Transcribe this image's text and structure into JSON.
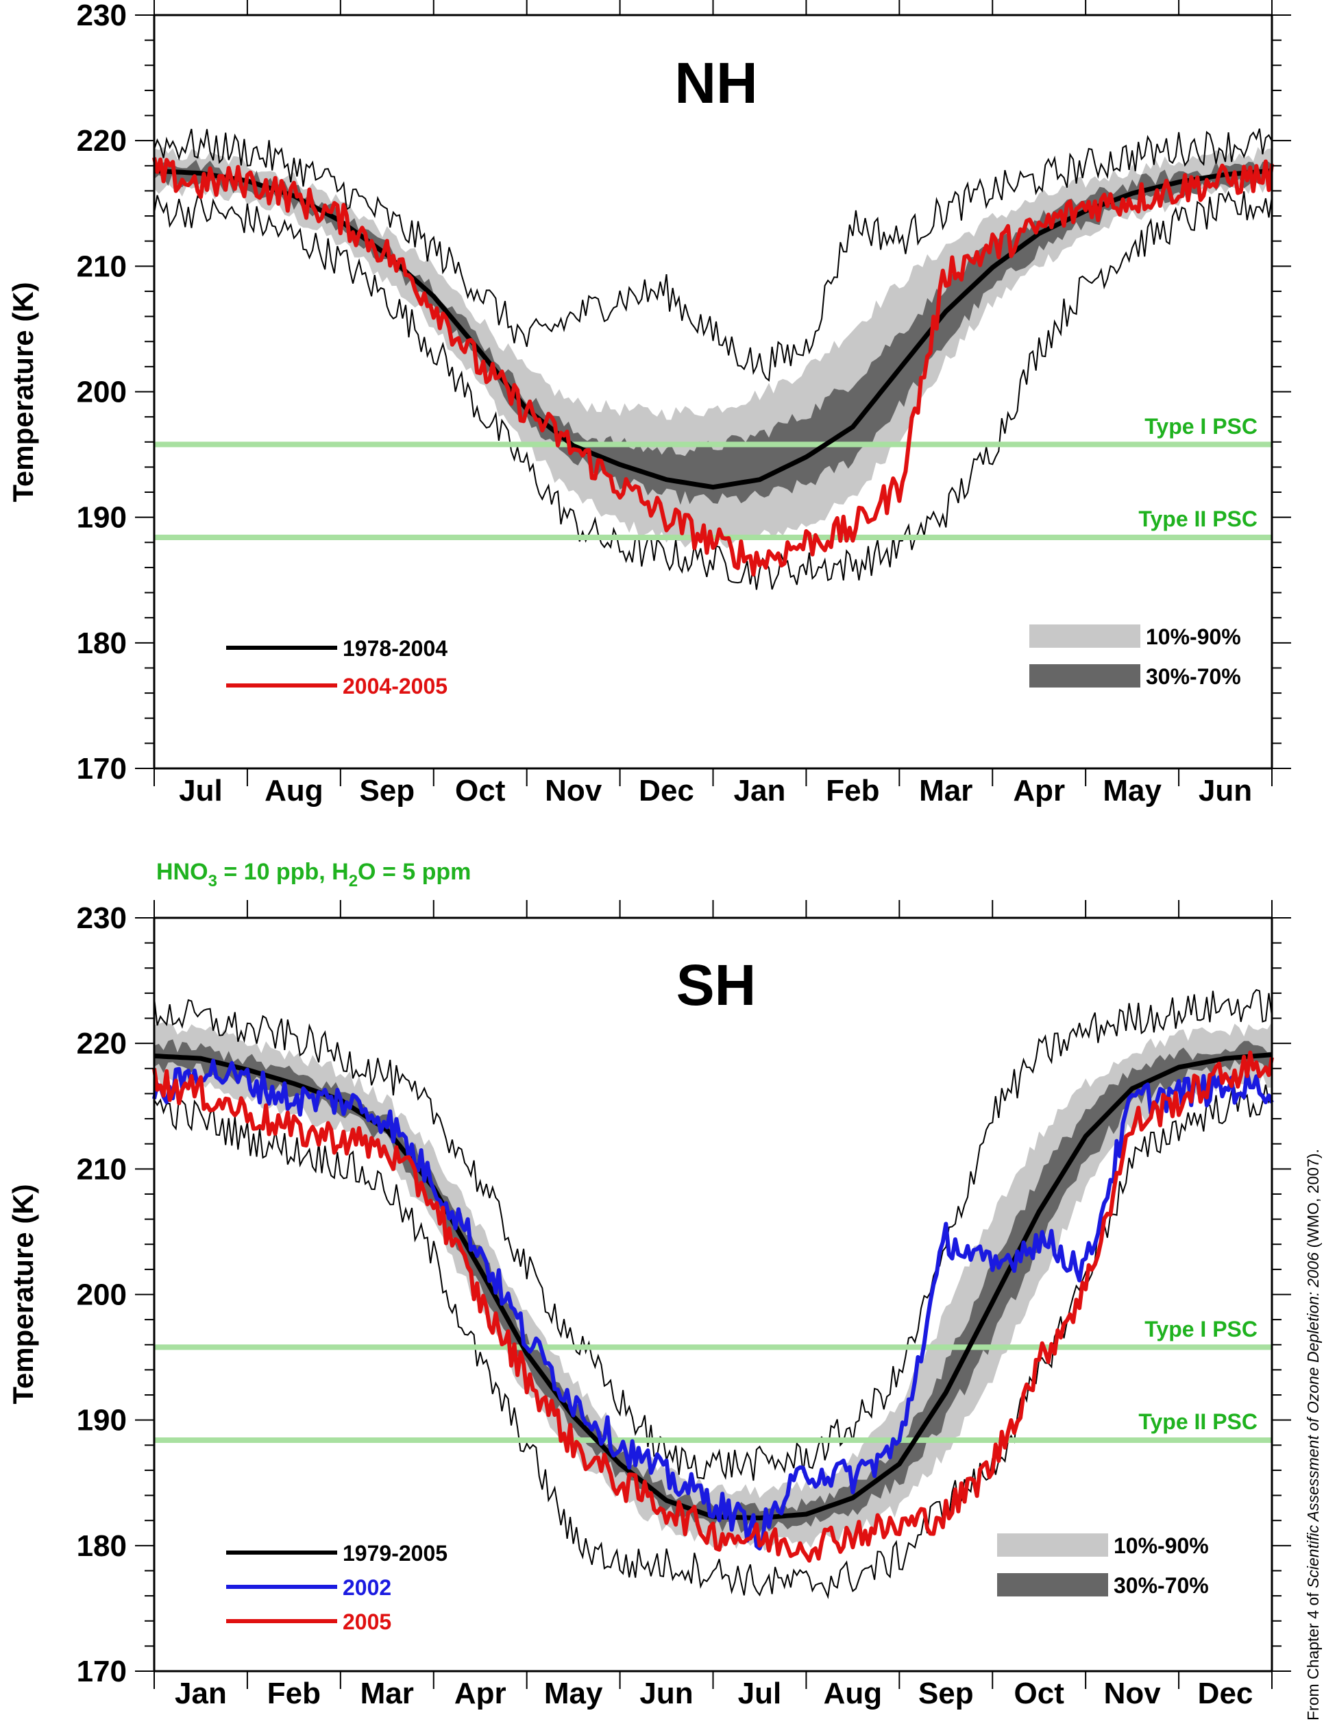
{
  "colors": {
    "psc_line": "#a8e0a0",
    "psc_text": "#1fb21f",
    "band_outer": "#c8c8c8",
    "band_inner": "#666666",
    "climatology": "#000000",
    "red": "#e01010",
    "blue": "#1a1ae0",
    "extreme": "#000000"
  },
  "condition_label": {
    "pre": "HNO",
    "sub1": "3",
    "mid": " = 10 ppb, H",
    "sub2": "2",
    "post": "O = 5 ppm"
  },
  "credit": {
    "prefix": "From Chapter 4 of ",
    "italic": "Scientific Assessment of Ozone Depletion: 2006",
    "suffix": " (WMO, 2007)."
  },
  "chart_data": [
    {
      "type": "line",
      "title": "NH",
      "ylabel": "Temperature (K)",
      "ylim": [
        170,
        230
      ],
      "yticks": [
        170,
        180,
        190,
        200,
        210,
        220,
        230
      ],
      "months": [
        "Jul",
        "Aug",
        "Sep",
        "Oct",
        "Nov",
        "Dec",
        "Jan",
        "Feb",
        "Mar",
        "Apr",
        "May",
        "Jun"
      ],
      "x_unit": "month index (0 = start of Jul)",
      "psc_lines": [
        {
          "label": "Type I PSC",
          "value": 195.8
        },
        {
          "label": "Type II PSC",
          "value": 188.4
        }
      ],
      "bands": [
        {
          "label": "10%-90%",
          "x": [
            0.0,
            0.5,
            1.0,
            1.5,
            2.0,
            2.5,
            3.0,
            3.5,
            4.0,
            4.5,
            5.0,
            5.5,
            6.0,
            6.5,
            7.0,
            7.5,
            8.0,
            8.5,
            9.0,
            9.5,
            10.0,
            10.5,
            11.0,
            11.5,
            12.0
          ],
          "lower": [
            216.0,
            215.9,
            215.3,
            213.9,
            211.8,
            208.9,
            205.4,
            200.6,
            195.6,
            191.8,
            189.5,
            188.3,
            188.0,
            188.4,
            189.4,
            191.4,
            196.4,
            202.4,
            207.0,
            210.2,
            212.4,
            214.0,
            215.2,
            216.0,
            216.5
          ],
          "upper": [
            219.0,
            218.8,
            218.2,
            217.0,
            215.2,
            212.6,
            209.8,
            205.8,
            201.6,
            199.1,
            198.6,
            198.3,
            198.6,
            199.8,
            201.8,
            205.0,
            208.6,
            211.6,
            213.8,
            215.4,
            216.7,
            217.7,
            218.4,
            218.8,
            219.0
          ]
        },
        {
          "label": "30%-70%",
          "x": [
            0.0,
            0.5,
            1.0,
            1.5,
            2.0,
            2.5,
            3.0,
            3.5,
            4.0,
            4.5,
            5.0,
            5.5,
            6.0,
            6.5,
            7.0,
            7.5,
            8.0,
            8.5,
            9.0,
            9.5,
            10.0,
            10.5,
            11.0,
            11.5,
            12.0
          ],
          "lower": [
            217.0,
            216.8,
            216.2,
            215.0,
            213.0,
            210.2,
            206.8,
            202.2,
            197.6,
            194.6,
            192.8,
            191.7,
            191.3,
            191.6,
            192.6,
            194.6,
            198.8,
            204.0,
            208.2,
            211.3,
            213.4,
            214.9,
            215.9,
            216.6,
            217.0
          ],
          "upper": [
            218.2,
            218.0,
            217.4,
            216.2,
            214.2,
            211.6,
            208.4,
            204.2,
            199.6,
            196.8,
            195.8,
            195.3,
            195.6,
            196.6,
            198.2,
            200.8,
            204.6,
            208.6,
            211.6,
            213.8,
            215.4,
            216.6,
            217.4,
            217.9,
            218.2
          ]
        }
      ],
      "extremes": {
        "x": [
          0.0,
          0.5,
          1.0,
          1.5,
          2.0,
          2.5,
          3.0,
          3.5,
          4.0,
          4.5,
          5.0,
          5.5,
          6.0,
          6.5,
          7.0,
          7.5,
          8.0,
          8.5,
          9.0,
          9.5,
          10.0,
          10.5,
          11.0,
          11.5,
          12.0
        ],
        "min": [
          214.5,
          214.4,
          213.8,
          212.4,
          210.5,
          207.5,
          203.5,
          198.5,
          194.0,
          189.5,
          187.5,
          187.0,
          186.5,
          185.5,
          186.0,
          186.2,
          187.5,
          190.5,
          195.5,
          203.5,
          208.5,
          211.5,
          213.5,
          214.5,
          215.0
        ],
        "max": [
          219.8,
          219.6,
          219.2,
          218.0,
          216.2,
          213.8,
          211.4,
          208.0,
          204.0,
          206.0,
          207.5,
          208.0,
          204.5,
          202.0,
          203.5,
          213.5,
          212.0,
          214.5,
          216.0,
          217.0,
          218.0,
          218.8,
          219.4,
          219.6,
          219.8
        ]
      },
      "series": [
        {
          "name": "1978-2004",
          "color": "#000000",
          "x": [
            0.0,
            0.5,
            1.0,
            1.5,
            2.0,
            2.5,
            3.0,
            3.5,
            4.0,
            4.5,
            5.0,
            5.5,
            6.0,
            6.5,
            7.0,
            7.5,
            8.0,
            8.5,
            9.0,
            9.5,
            10.0,
            10.5,
            11.0,
            11.5,
            12.0
          ],
          "values": [
            217.6,
            217.4,
            216.8,
            215.6,
            213.6,
            210.9,
            207.6,
            203.2,
            198.6,
            195.7,
            194.2,
            193.0,
            192.4,
            193.0,
            194.8,
            197.2,
            201.8,
            206.4,
            209.9,
            212.6,
            214.4,
            215.8,
            216.7,
            217.3,
            217.6
          ]
        },
        {
          "name": "2004-2005",
          "color": "#e01010",
          "x": [
            0.0,
            0.5,
            1.0,
            1.5,
            2.0,
            2.5,
            3.0,
            3.5,
            4.0,
            4.5,
            5.0,
            5.5,
            6.0,
            6.5,
            7.0,
            7.5,
            8.0,
            8.5,
            9.0,
            9.5,
            10.0,
            10.5,
            11.0,
            11.5,
            12.0
          ],
          "values": [
            217.5,
            216.5,
            216.8,
            215.5,
            213.8,
            211.0,
            207.0,
            202.0,
            198.5,
            195.5,
            192.5,
            190.0,
            188.0,
            186.5,
            188.0,
            189.0,
            192.5,
            209.5,
            211.5,
            213.0,
            214.8,
            215.3,
            216.2,
            216.8,
            217.2
          ]
        }
      ],
      "legend": {
        "lines": [
          {
            "label": "1978-2004",
            "color": "#000000"
          },
          {
            "label": "2004-2005",
            "color": "#e01010"
          }
        ],
        "bands": [
          {
            "label": "10%-90%",
            "color": "#c8c8c8"
          },
          {
            "label": "30%-70%",
            "color": "#666666"
          }
        ]
      }
    },
    {
      "type": "line",
      "title": "SH",
      "ylabel": "Temperature (K)",
      "ylim": [
        170,
        230
      ],
      "yticks": [
        170,
        180,
        190,
        200,
        210,
        220,
        230
      ],
      "months": [
        "Jan",
        "Feb",
        "Mar",
        "Apr",
        "May",
        "Jun",
        "Jul",
        "Aug",
        "Sep",
        "Oct",
        "Nov",
        "Dec"
      ],
      "x_unit": "month index (0 = start of Jan)",
      "psc_lines": [
        {
          "label": "Type I PSC",
          "value": 195.8
        },
        {
          "label": "Type II PSC",
          "value": 188.4
        }
      ],
      "bands": [
        {
          "label": "10%-90%",
          "x": [
            0.0,
            0.5,
            1.0,
            1.5,
            2.0,
            2.5,
            3.0,
            3.5,
            4.0,
            4.5,
            5.0,
            5.5,
            6.0,
            6.5,
            7.0,
            7.5,
            8.0,
            8.5,
            9.0,
            9.5,
            10.0,
            10.5,
            11.0,
            11.5,
            12.0
          ],
          "lower": [
            216.8,
            216.5,
            215.6,
            214.5,
            213.3,
            210.8,
            205.6,
            198.9,
            192.2,
            187.5,
            184.0,
            181.4,
            180.3,
            180.1,
            180.2,
            181.1,
            183.0,
            187.4,
            193.2,
            201.0,
            208.6,
            213.5,
            215.9,
            216.8,
            217.0
          ],
          "upper": [
            221.3,
            221.0,
            220.1,
            219.0,
            217.8,
            215.4,
            211.4,
            205.2,
            198.4,
            193.0,
            188.8,
            185.9,
            184.4,
            184.3,
            184.6,
            186.8,
            191.0,
            198.6,
            206.4,
            212.5,
            216.8,
            219.4,
            220.6,
            221.0,
            221.3
          ]
        },
        {
          "label": "30%-70%",
          "x": [
            0.0,
            0.5,
            1.0,
            1.5,
            2.0,
            2.5,
            3.0,
            3.5,
            4.0,
            4.5,
            5.0,
            5.5,
            6.0,
            6.5,
            7.0,
            7.5,
            8.0,
            8.5,
            9.0,
            9.5,
            10.0,
            10.5,
            11.0,
            11.5,
            12.0
          ],
          "lower": [
            218.2,
            217.9,
            217.0,
            215.9,
            214.6,
            212.2,
            207.2,
            200.6,
            194.0,
            189.2,
            185.6,
            182.8,
            181.6,
            181.5,
            181.8,
            182.8,
            185.0,
            190.0,
            196.4,
            203.8,
            210.6,
            215.2,
            217.2,
            218.1,
            218.4
          ],
          "upper": [
            219.8,
            219.6,
            218.7,
            217.6,
            216.3,
            214.0,
            209.8,
            203.4,
            196.6,
            191.4,
            187.4,
            184.4,
            183.0,
            182.9,
            183.2,
            184.8,
            188.0,
            194.4,
            202.4,
            209.4,
            214.6,
            217.7,
            219.1,
            219.6,
            219.8
          ]
        }
      ],
      "extremes": {
        "x": [
          0.0,
          0.5,
          1.0,
          1.5,
          2.0,
          2.5,
          3.0,
          3.5,
          4.0,
          4.5,
          5.0,
          5.5,
          6.0,
          6.5,
          7.0,
          7.5,
          8.0,
          8.5,
          9.0,
          9.5,
          10.0,
          10.5,
          11.0,
          11.5,
          12.0
        ],
        "min": [
          215.0,
          214.0,
          212.5,
          211.5,
          210.5,
          208.5,
          203.0,
          194.5,
          188.0,
          180.5,
          178.5,
          178.5,
          178.0,
          177.0,
          177.0,
          177.5,
          179.0,
          183.5,
          186.0,
          193.5,
          201.5,
          210.5,
          213.5,
          215.0,
          215.5
        ],
        "max": [
          222.5,
          222.0,
          221.0,
          220.5,
          219.0,
          217.5,
          214.5,
          209.0,
          202.0,
          196.5,
          191.5,
          187.0,
          186.5,
          186.5,
          187.0,
          189.5,
          193.5,
          203.5,
          214.5,
          219.0,
          221.0,
          222.0,
          222.5,
          223.0,
          223.0
        ]
      },
      "series": [
        {
          "name": "1979-2005",
          "color": "#000000",
          "x": [
            0.0,
            0.5,
            1.0,
            1.5,
            2.0,
            2.5,
            3.0,
            3.5,
            4.0,
            4.5,
            5.0,
            5.5,
            6.0,
            6.5,
            7.0,
            7.5,
            8.0,
            8.5,
            9.0,
            9.5,
            10.0,
            10.5,
            11.0,
            11.5,
            12.0
          ],
          "values": [
            219.0,
            218.8,
            217.9,
            216.8,
            215.5,
            213.1,
            208.5,
            202.0,
            195.3,
            190.3,
            186.5,
            183.6,
            182.3,
            182.2,
            182.5,
            183.8,
            186.5,
            192.2,
            199.4,
            206.6,
            212.6,
            216.4,
            218.1,
            218.8,
            219.1
          ]
        },
        {
          "name": "2002",
          "color": "#1a1ae0",
          "x": [
            0.0,
            0.5,
            1.0,
            1.5,
            2.0,
            2.5,
            3.0,
            3.5,
            4.0,
            4.5,
            5.0,
            5.5,
            6.0,
            6.5,
            7.0,
            7.5,
            8.0,
            8.5,
            9.0,
            9.5,
            10.0,
            10.5,
            11.0,
            11.5,
            12.0
          ],
          "values": [
            215.5,
            218.0,
            217.0,
            215.5,
            215.5,
            214.0,
            209.0,
            203.5,
            196.5,
            191.5,
            188.0,
            185.5,
            183.5,
            181.0,
            186.0,
            185.5,
            188.0,
            204.5,
            202.0,
            204.5,
            202.0,
            215.5,
            216.0,
            216.5,
            216.5
          ]
        },
        {
          "name": "2005",
          "color": "#e01010",
          "x": [
            0.0,
            0.5,
            1.0,
            1.5,
            2.0,
            2.5,
            3.0,
            3.5,
            4.0,
            4.5,
            5.0,
            5.5,
            6.0,
            6.5,
            7.0,
            7.5,
            8.0,
            8.5,
            9.0,
            9.5,
            10.0,
            10.5,
            11.0,
            11.5,
            12.0
          ],
          "values": [
            217.0,
            216.0,
            214.5,
            213.0,
            212.5,
            211.5,
            207.5,
            199.5,
            193.5,
            188.0,
            185.0,
            183.0,
            181.0,
            180.5,
            180.0,
            181.0,
            181.5,
            182.5,
            186.5,
            194.5,
            200.5,
            213.5,
            215.5,
            217.5,
            218.5
          ]
        }
      ],
      "legend": {
        "lines": [
          {
            "label": "1979-2005",
            "color": "#000000"
          },
          {
            "label": "2002",
            "color": "#1a1ae0"
          },
          {
            "label": "2005",
            "color": "#e01010"
          }
        ],
        "bands": [
          {
            "label": "10%-90%",
            "color": "#c8c8c8"
          },
          {
            "label": "30%-70%",
            "color": "#666666"
          }
        ]
      }
    }
  ]
}
